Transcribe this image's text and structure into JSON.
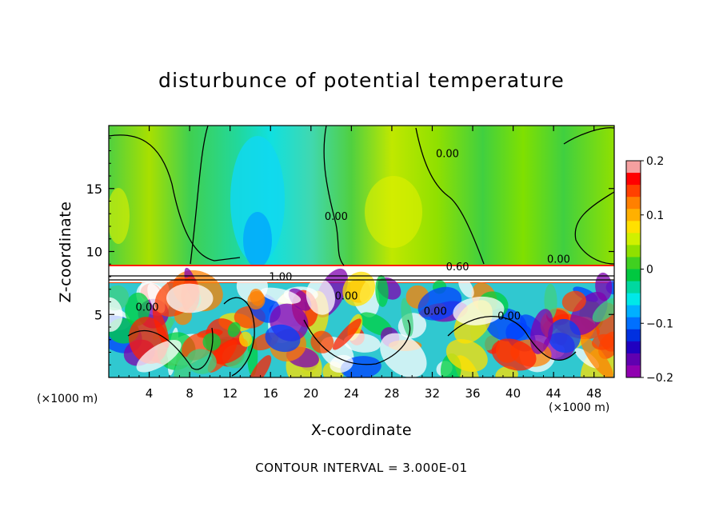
{
  "chart_data": {
    "type": "heatmap",
    "title": "disturbunce of potential temperature",
    "xlabel": "X-coordinate",
    "ylabel": "Z-coordinate",
    "x_unit_label": "(×1000 m)",
    "footer": "CONTOUR INTERVAL = 3.000E-01",
    "x_ticks": [
      4,
      8,
      12,
      16,
      20,
      24,
      28,
      32,
      36,
      40,
      44,
      48
    ],
    "y_ticks": [
      5,
      10,
      15
    ],
    "xlim": [
      0,
      50
    ],
    "ylim": [
      0,
      20
    ],
    "colorbar": {
      "ticks": [
        0.2,
        0.1,
        0,
        -0.1,
        -0.2
      ],
      "tick_labels": [
        "0.2",
        "0.1",
        "0",
        "−0.1",
        "−0.2"
      ],
      "range": [
        -0.2,
        0.2
      ],
      "colors": [
        "#f5a0a0",
        "#ff0000",
        "#ff4000",
        "#ff8000",
        "#ffb000",
        "#ffe000",
        "#d0f000",
        "#90e000",
        "#40d020",
        "#00c840",
        "#00d8a0",
        "#00e8e8",
        "#00b0ff",
        "#0070ff",
        "#0030e0",
        "#2000c0",
        "#6000b0",
        "#9000b0"
      ]
    },
    "contour_labels": [
      {
        "text": "0.00",
        "x": 33.5,
        "y": 17.5
      },
      {
        "text": "0.00",
        "x": 22.5,
        "y": 12.5
      },
      {
        "text": "0.60",
        "x": 34.5,
        "y": 8.5
      },
      {
        "text": "0.00",
        "x": 44.5,
        "y": 9.1
      },
      {
        "text": "1.00",
        "x": 17.0,
        "y": 7.7
      },
      {
        "text": "0.00",
        "x": 3.8,
        "y": 5.3
      },
      {
        "text": "0.00",
        "x": 23.5,
        "y": 6.2
      },
      {
        "text": "0.00",
        "x": 32.3,
        "y": 5.0
      },
      {
        "text": "0.00",
        "x": 39.6,
        "y": 4.6
      }
    ]
  }
}
